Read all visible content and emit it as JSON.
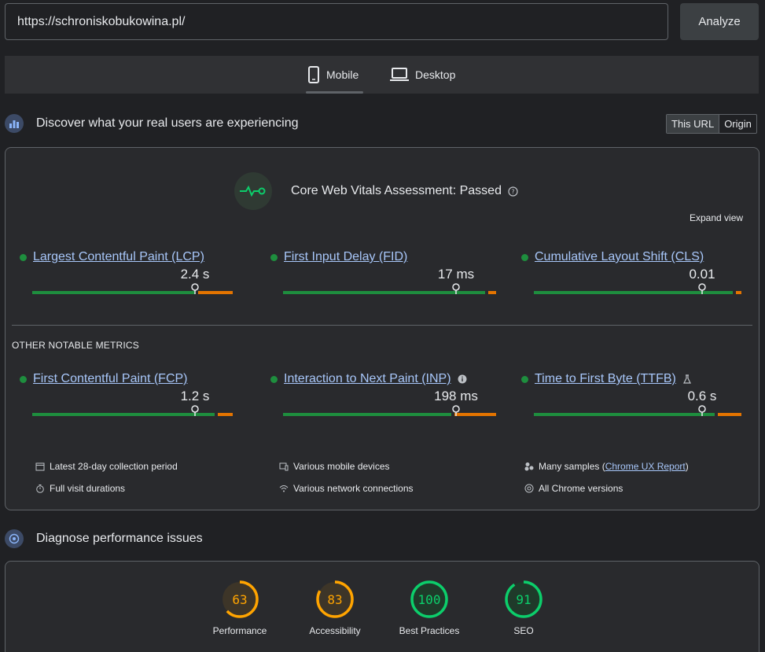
{
  "search": {
    "url": "https://schroniskobukowina.pl/",
    "analyze_label": "Analyze"
  },
  "tabs": [
    {
      "label": "Mobile"
    },
    {
      "label": "Desktop"
    }
  ],
  "real_users": {
    "title": "Discover what your real users are experiencing",
    "toggle": {
      "this_url": "This URL",
      "origin": "Origin"
    },
    "assessment": "Core Web Vitals Assessment: Passed",
    "expand": "Expand view",
    "core_metrics": [
      {
        "name": "Largest Contentful Paint (LCP)",
        "value": "2.4 s",
        "good": 0.81,
        "ni": 0.19,
        "poor": 0.0
      },
      {
        "name": "First Input Delay (FID)",
        "value": "17 ms",
        "good": 0.95,
        "ni": 0.05,
        "poor": 0.0
      },
      {
        "name": "Cumulative Layout Shift (CLS)",
        "value": "0.01",
        "good": 0.96,
        "ni": 0.04,
        "poor": 0.0
      }
    ],
    "other_title": "OTHER NOTABLE METRICS",
    "other_metrics": [
      {
        "name": "First Contentful Paint (FCP)",
        "value": "1.2 s",
        "good": 0.91,
        "ni": 0.09,
        "poor": 0.0
      },
      {
        "name": "Interaction to Next Paint (INP)",
        "value": "198 ms",
        "good": 0.79,
        "ni": 0.21,
        "poor": 0.0
      },
      {
        "name": "Time to First Byte (TTFB)",
        "value": "0.6 s",
        "good": 0.87,
        "ni": 0.13,
        "poor": 0.0
      }
    ],
    "meta": {
      "period": "Latest 28-day collection period",
      "durations": "Full visit durations",
      "devices": "Various mobile devices",
      "network": "Various network connections",
      "samples_prefix": "Many samples (",
      "samples_link": "Chrome UX Report",
      "samples_suffix": ")",
      "chrome": "All Chrome versions"
    }
  },
  "diagnose": {
    "title": "Diagnose performance issues",
    "scores": [
      {
        "value": "63",
        "label": "Performance",
        "score": 63,
        "color": "#ffa400"
      },
      {
        "value": "83",
        "label": "Accessibility",
        "score": 83,
        "color": "#ffa400"
      },
      {
        "value": "100",
        "label": "Best Practices",
        "score": 100,
        "color": "#0cce6b"
      },
      {
        "value": "91",
        "label": "SEO",
        "score": 91,
        "color": "#0cce6b"
      }
    ]
  }
}
